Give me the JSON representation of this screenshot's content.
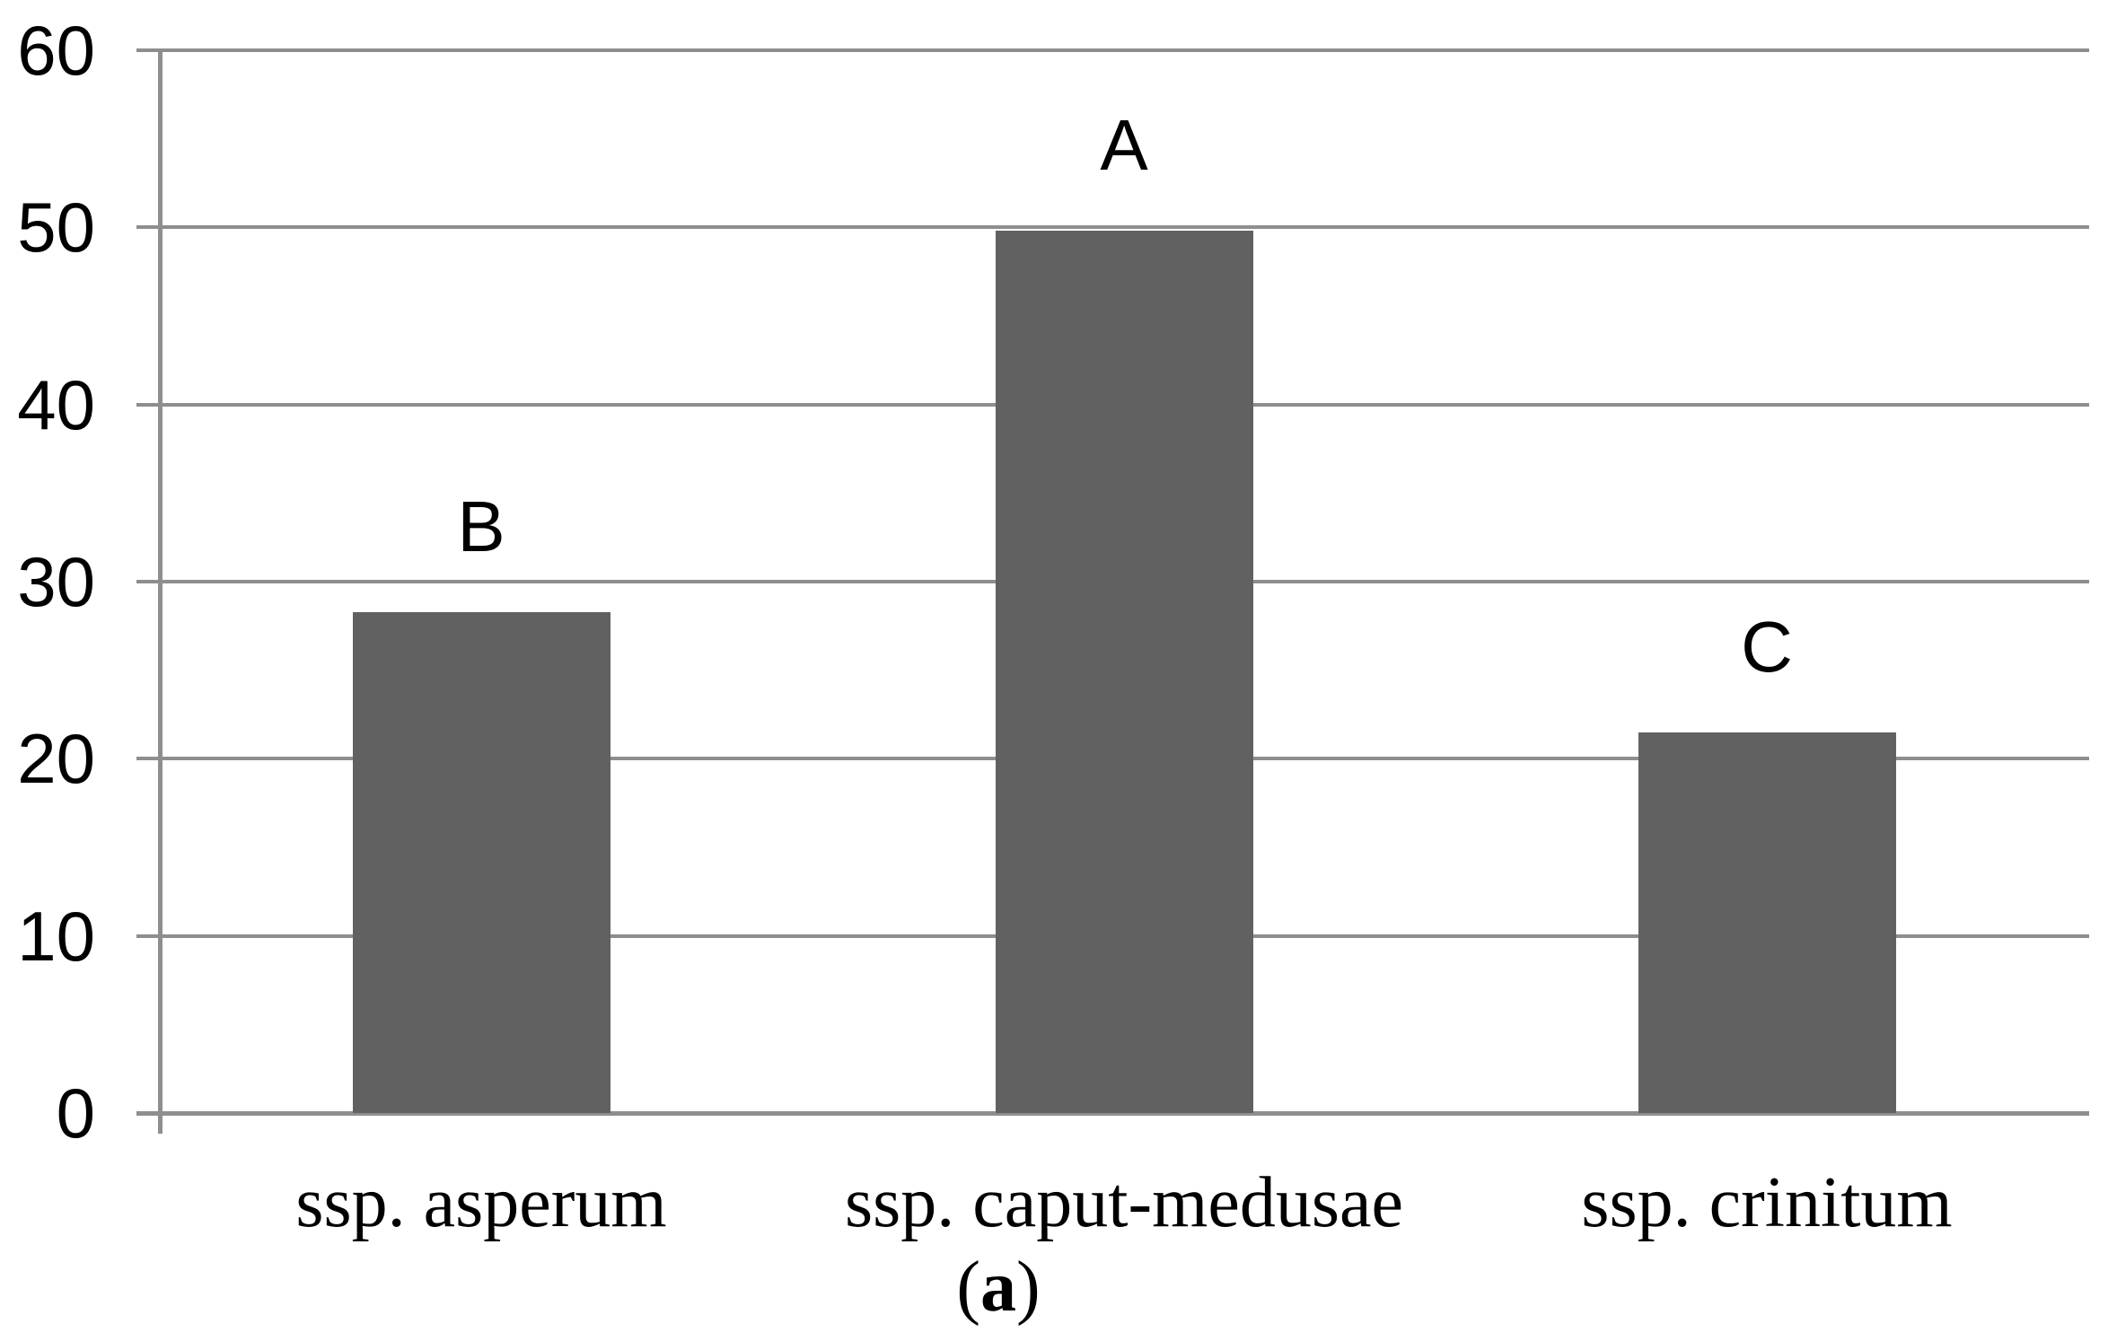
{
  "chart_data": {
    "type": "bar",
    "title": "",
    "xlabel": "",
    "ylabel": "",
    "categories": [
      "ssp. asperum",
      "ssp. caput-medusae",
      "ssp. crinitum"
    ],
    "values": [
      28.3,
      49.8,
      21.5
    ],
    "bar_labels": [
      "B",
      "A",
      "C"
    ],
    "ylim": [
      0,
      60
    ],
    "yticks": [
      0,
      10,
      20,
      30,
      40,
      50,
      60
    ],
    "grid": true,
    "legend": false,
    "caption": {
      "open": "(",
      "letter": "a",
      "close": ")"
    },
    "colors": {
      "bar_fill": "#616161",
      "gridline": "#8e8e8e",
      "axis": "#8e8e8e",
      "text": "#000000",
      "background": "#ffffff"
    }
  }
}
